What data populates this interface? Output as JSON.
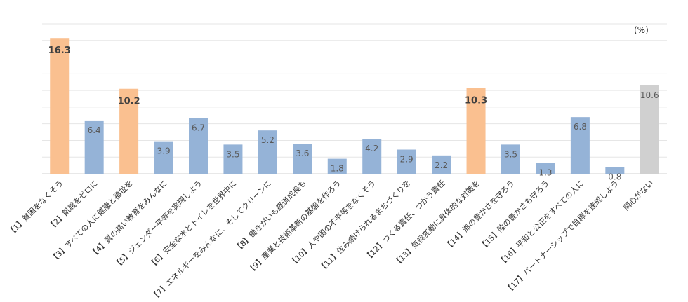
{
  "chart_data": {
    "type": "bar",
    "title": "",
    "xlabel": "",
    "ylabel": "",
    "unit_label": "(%)",
    "ylim": [
      0,
      18
    ],
    "grid": true,
    "legend": "none",
    "categories": [
      "【1】貧困をなくそう",
      "【2】飢餓をゼロに",
      "【3】すべての人に健康と福祉を",
      "【4】質の高い教育をみんなに",
      "【5】ジェンダー平等を実現しよう",
      "【6】安全な水とトイレを世界中に",
      "【7】エネルギーをみんなに、そしてクリーンに",
      "【8】働きがいも経済成長も",
      "【9】産業と技術革新の基盤を作ろう",
      "【10】人や国の不平等をなくそう",
      "【11】住み続けられるまちづくりを",
      "【12】つくる責任、つかう責任",
      "【13】気候変動に具体的な対策を",
      "【14】海の豊かさを守ろう",
      "【15】陸の豊かさも守ろう",
      "【16】平和と公正をすべての人に",
      "【17】パートナーシップで目標を達成しよう",
      "関心がない"
    ],
    "values": [
      16.3,
      6.4,
      10.2,
      3.9,
      6.7,
      3.5,
      5.2,
      3.6,
      1.8,
      4.2,
      2.9,
      2.2,
      10.3,
      3.5,
      1.3,
      6.8,
      0.8,
      10.6
    ],
    "value_labels": [
      "16.3",
      "6.4",
      "10.2",
      "3.9",
      "6.7",
      "3.5",
      "5.2",
      "3.6",
      "1.8",
      "4.2",
      "2.9",
      "2.2",
      "10.3",
      "3.5",
      "1.3",
      "6.8",
      "0.8",
      "10.6"
    ],
    "highlight_indices": [
      0,
      2,
      12
    ],
    "gray_indices": [
      17
    ],
    "colors": {
      "default": "#95b3d7",
      "highlight": "#fac090",
      "none": "#d0d0d0",
      "label_default": "#595959",
      "label_highlight": "#404040",
      "grid": "#e6e6e6",
      "axis": "#d0d0d0",
      "category_text": "#333333"
    }
  }
}
